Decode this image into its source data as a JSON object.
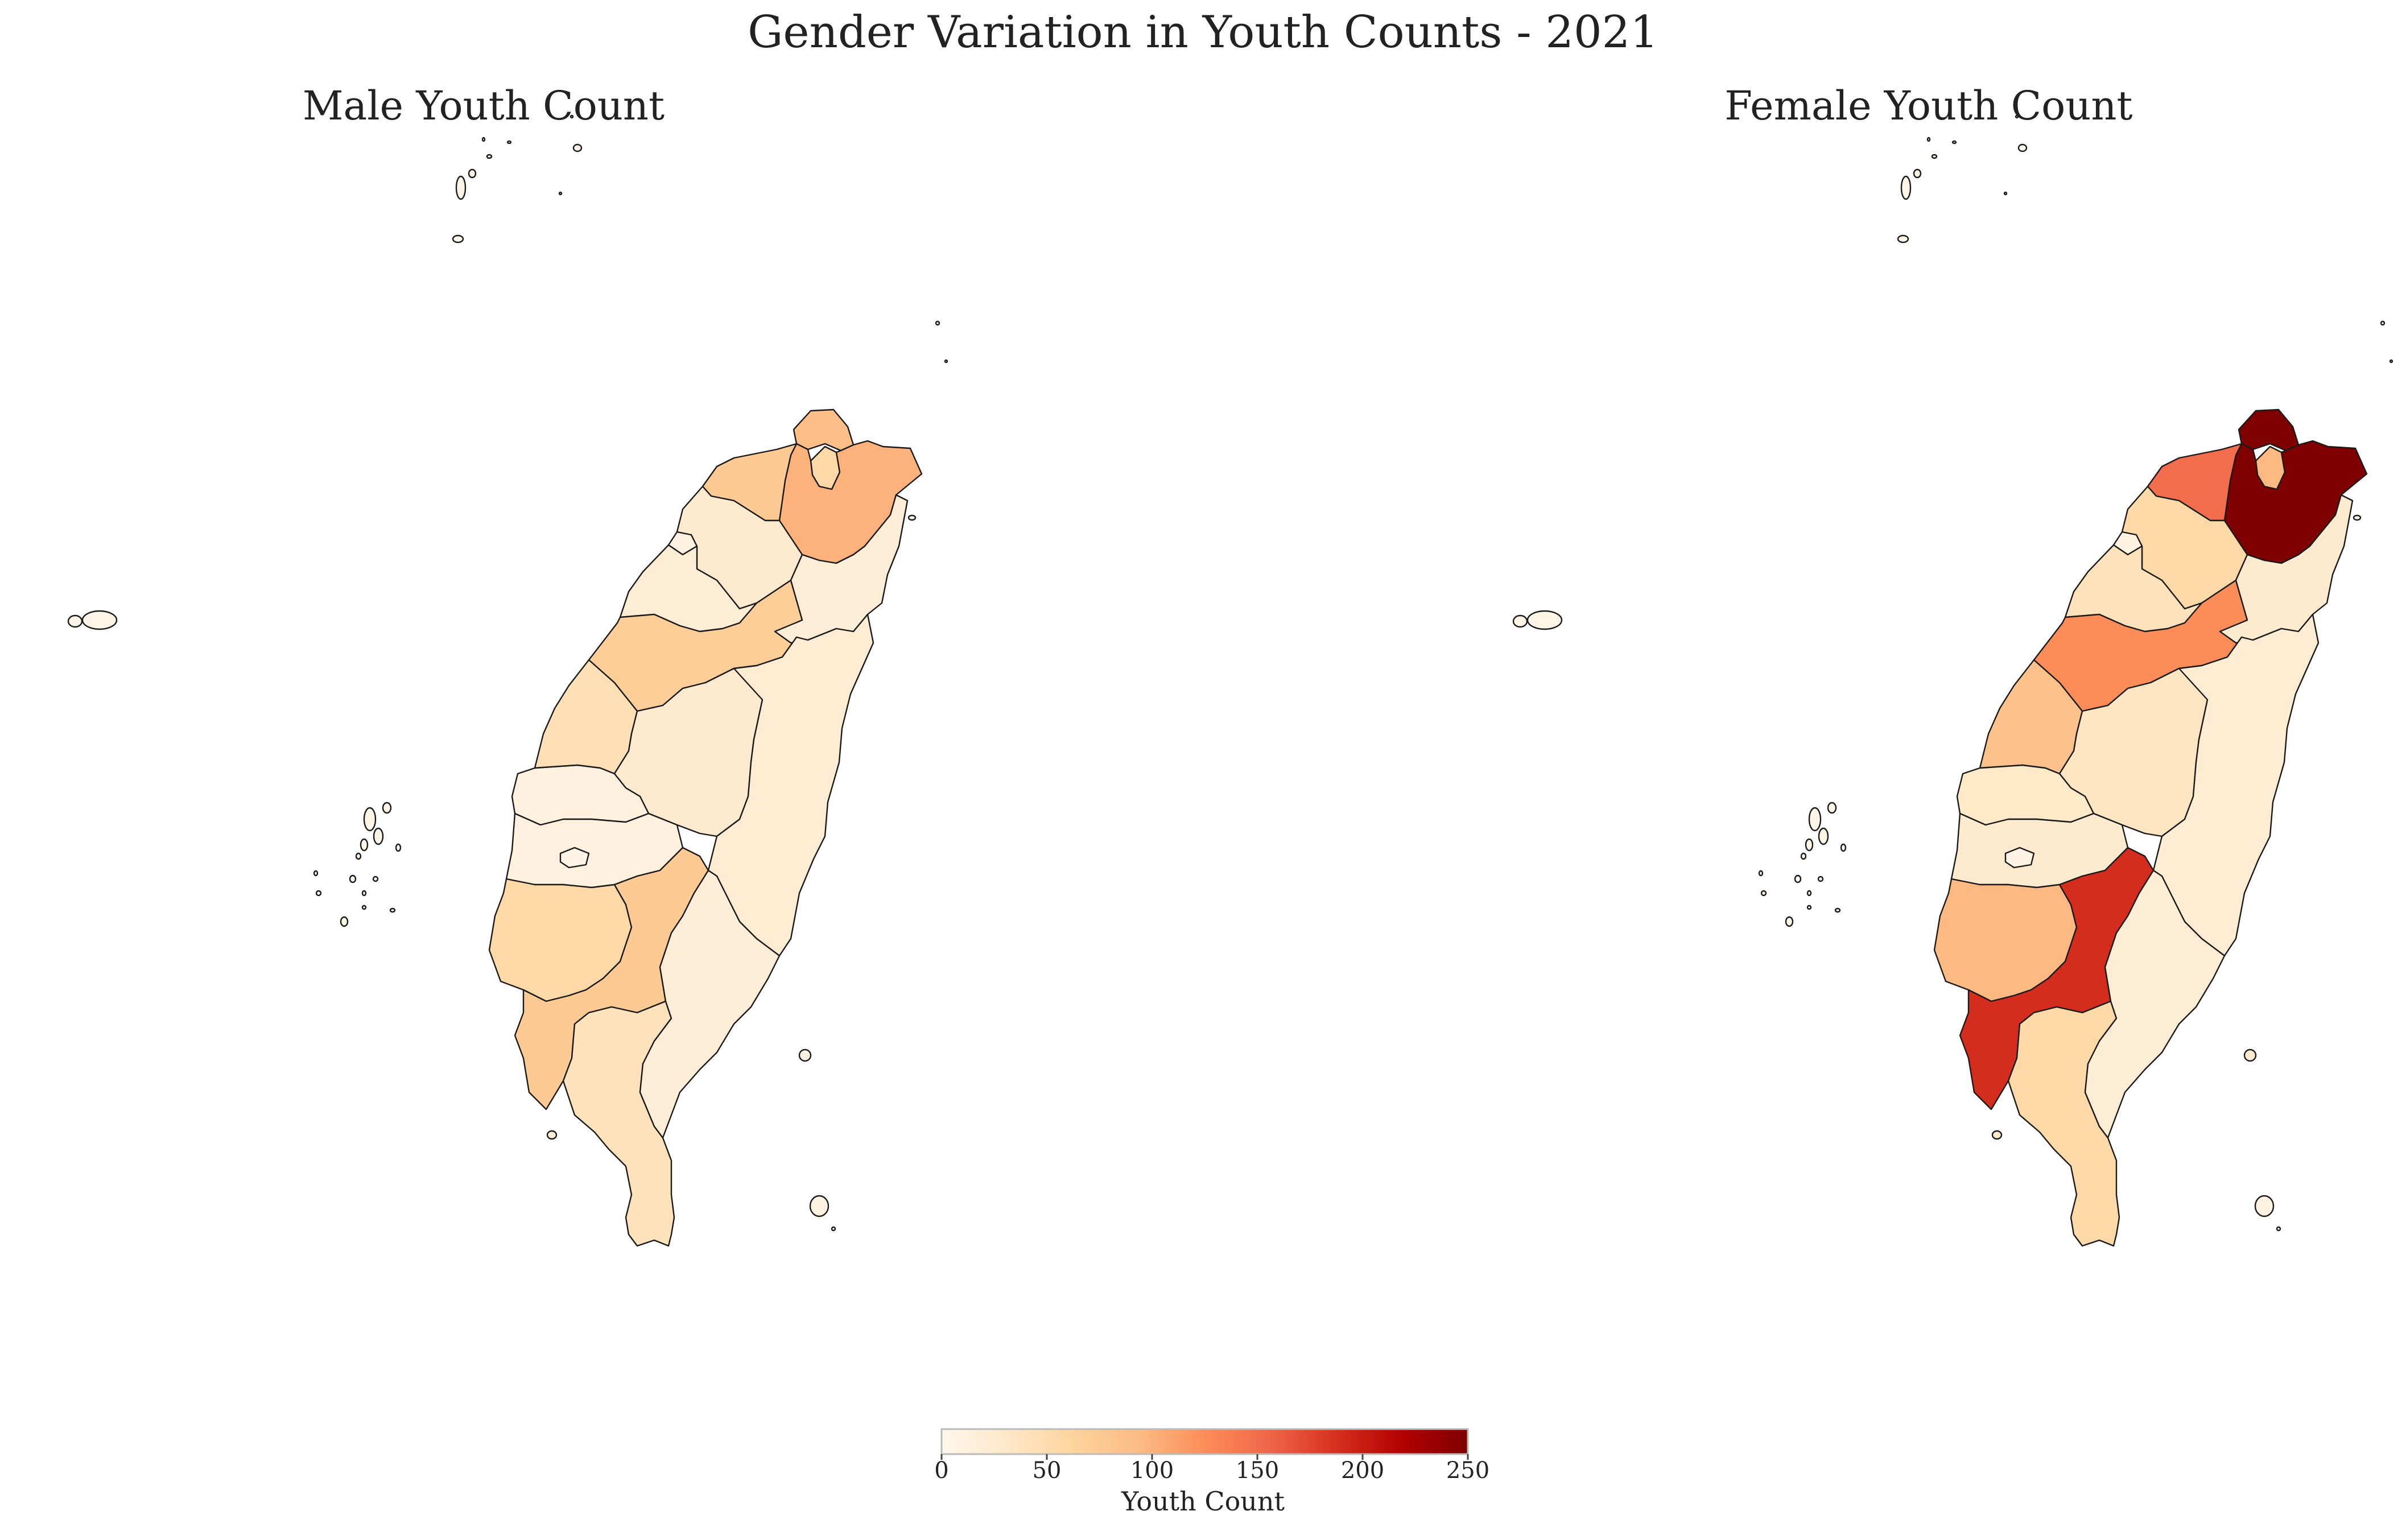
{
  "figure": {
    "title": "Gender Variation in Youth Counts - 2021"
  },
  "colorbar": {
    "label": "Youth Count",
    "min": 0,
    "max": 250,
    "ticks": [
      "0",
      "50",
      "100",
      "150",
      "200",
      "250"
    ],
    "colormap": "OrRd"
  },
  "chart_data": {
    "type": "choropleth",
    "title": "Gender Variation in Youth Counts - 2021",
    "colorbar_label": "Youth Count",
    "vmin": 0,
    "vmax": 250,
    "panels": [
      {
        "title": "Male Youth Count",
        "regions": [
          {
            "id": "keelung",
            "value": 90
          },
          {
            "id": "taipei",
            "value": 55
          },
          {
            "id": "new-taipei",
            "value": 100
          },
          {
            "id": "taoyuan",
            "value": 75
          },
          {
            "id": "hsinchu-city",
            "value": 10
          },
          {
            "id": "hsinchu-county",
            "value": 25
          },
          {
            "id": "miaoli",
            "value": 20
          },
          {
            "id": "taichung",
            "value": 70
          },
          {
            "id": "changhua",
            "value": 45
          },
          {
            "id": "nantou",
            "value": 25
          },
          {
            "id": "yunlin",
            "value": 12
          },
          {
            "id": "chiayi-county",
            "value": 12
          },
          {
            "id": "chiayi-city",
            "value": 6
          },
          {
            "id": "tainan",
            "value": 55
          },
          {
            "id": "kaohsiung",
            "value": 75
          },
          {
            "id": "pingtung",
            "value": 40
          },
          {
            "id": "yilan",
            "value": 18
          },
          {
            "id": "hualien",
            "value": 22
          },
          {
            "id": "taitung",
            "value": 18
          },
          {
            "id": "penghu",
            "value": 5
          },
          {
            "id": "kinmen",
            "value": 5
          },
          {
            "id": "lienchiang",
            "value": 5
          },
          {
            "id": "green-island",
            "value": 10
          },
          {
            "id": "orchid-island",
            "value": 10
          },
          {
            "id": "liuqiu",
            "value": 20
          }
        ]
      },
      {
        "title": "Female Youth Count",
        "regions": [
          {
            "id": "keelung",
            "value": 250
          },
          {
            "id": "taipei",
            "value": 95
          },
          {
            "id": "new-taipei",
            "value": 250
          },
          {
            "id": "taoyuan",
            "value": 150
          },
          {
            "id": "hsinchu-city",
            "value": 10
          },
          {
            "id": "hsinchu-county",
            "value": 55
          },
          {
            "id": "miaoli",
            "value": 40
          },
          {
            "id": "taichung",
            "value": 125
          },
          {
            "id": "changhua",
            "value": 85
          },
          {
            "id": "nantou",
            "value": 35
          },
          {
            "id": "yunlin",
            "value": 30
          },
          {
            "id": "chiayi-county",
            "value": 25
          },
          {
            "id": "chiayi-city",
            "value": 8
          },
          {
            "id": "tainan",
            "value": 95
          },
          {
            "id": "kaohsiung",
            "value": 190
          },
          {
            "id": "pingtung",
            "value": 55
          },
          {
            "id": "yilan",
            "value": 25
          },
          {
            "id": "hualien",
            "value": 22
          },
          {
            "id": "taitung",
            "value": 20
          },
          {
            "id": "penghu",
            "value": 5
          },
          {
            "id": "kinmen",
            "value": 5
          },
          {
            "id": "lienchiang",
            "value": 5
          },
          {
            "id": "green-island",
            "value": 25
          },
          {
            "id": "orchid-island",
            "value": 10
          },
          {
            "id": "liuqiu",
            "value": 30
          }
        ]
      }
    ]
  }
}
